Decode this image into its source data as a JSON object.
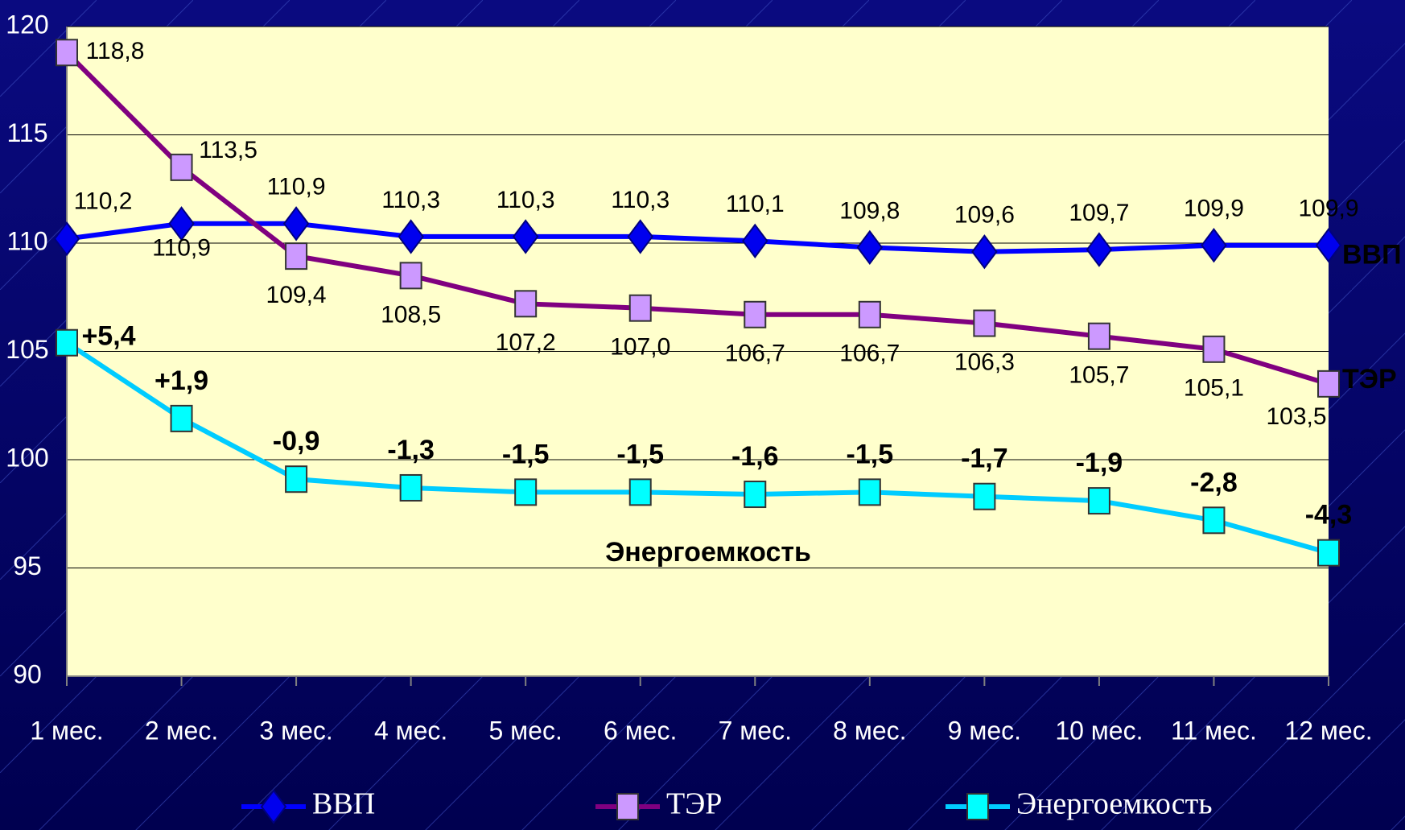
{
  "chart_data": {
    "type": "line",
    "categories": [
      "1 мес.",
      "2 мес.",
      "3 мес.",
      "4 мес.",
      "5 мес.",
      "6 мес.",
      "7 мес.",
      "8 мес.",
      "9 мес.",
      "10 мес.",
      "11 мес.",
      "12 мес."
    ],
    "ylim": [
      90,
      120
    ],
    "yticks": [
      90,
      95,
      100,
      105,
      110,
      115,
      120
    ],
    "grid": true,
    "series": [
      {
        "name": "ВВП",
        "color": "#0000ff",
        "marker": "diamond",
        "marker_color": "#0000ee",
        "values": [
          110.2,
          110.9,
          110.9,
          110.3,
          110.3,
          110.3,
          110.1,
          109.8,
          109.6,
          109.7,
          109.9,
          109.9
        ],
        "value_labels": [
          "110,2",
          "110,9",
          "110,9",
          "110,3",
          "110,3",
          "110,3",
          "110,1",
          "109,8",
          "109,6",
          "109,7",
          "109,9",
          "109,9"
        ]
      },
      {
        "name": "ТЭР",
        "color": "#800080",
        "marker": "square",
        "marker_color": "#cc99ff",
        "values": [
          118.8,
          113.5,
          109.4,
          108.5,
          107.2,
          107.0,
          106.7,
          106.7,
          106.3,
          105.7,
          105.1,
          103.5
        ],
        "value_labels": [
          "118,8",
          "113,5",
          "109,4",
          "108,5",
          "107,2",
          "107,0",
          "106,7",
          "106,7",
          "106,3",
          "105,7",
          "105,1",
          "103,5"
        ]
      },
      {
        "name": "Энергоемкость",
        "color": "#00ccff",
        "marker": "square",
        "marker_color": "#00ffff",
        "values": [
          105.4,
          101.9,
          99.1,
          98.7,
          98.5,
          98.5,
          98.4,
          98.5,
          98.3,
          98.1,
          97.2,
          95.7
        ],
        "point_labels": [
          "+5,4",
          "+1,9",
          "-0,9",
          "-1,3",
          "-1,5",
          "-1,5",
          "-1,6",
          "-1,5",
          "-1,7",
          "-1,9",
          "-2,8",
          "-4,3"
        ]
      }
    ]
  }
}
